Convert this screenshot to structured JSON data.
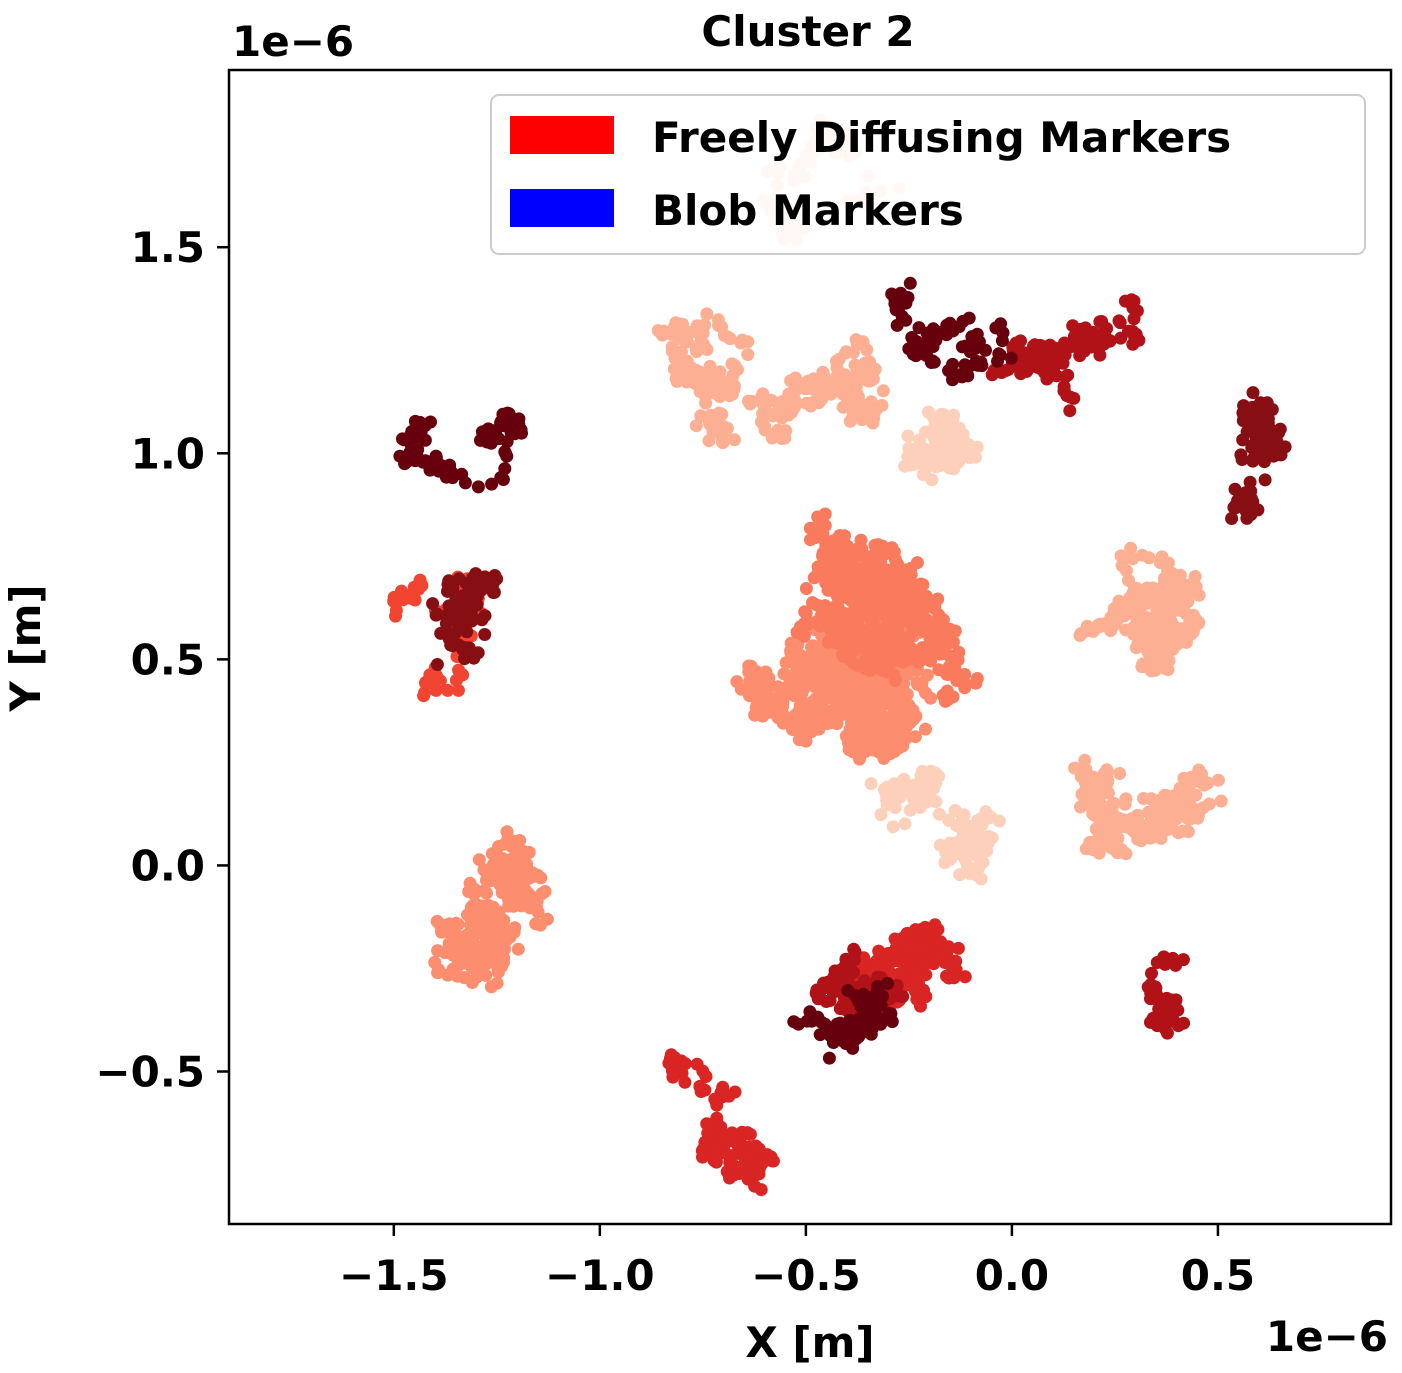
{
  "chart_data": {
    "type": "scatter",
    "title": "Cluster 2",
    "xlabel": "X [m]",
    "ylabel": "Y [m]",
    "x_offset_label": "1e−6",
    "y_offset_label": "1e−6",
    "xlim": [
      -1.9,
      0.92
    ],
    "ylim": [
      -0.87,
      1.93
    ],
    "x_ticks": [
      -1.5,
      -1.0,
      -0.5,
      0.0,
      0.5
    ],
    "x_tick_labels": [
      "−1.5",
      "−1.0",
      "−0.5",
      "0.0",
      "0.5"
    ],
    "y_ticks": [
      -0.5,
      0.0,
      0.5,
      1.0,
      1.5
    ],
    "y_tick_labels": [
      "−0.5",
      "0.0",
      "0.5",
      "1.0",
      "1.5"
    ],
    "grid": false,
    "legend": {
      "position": "top-right",
      "entries": [
        {
          "label": "Freely Diffusing Markers",
          "color": "#ff0000"
        },
        {
          "label": "Blob Markers",
          "color": "#0000ff"
        }
      ]
    },
    "colors": [
      "#fc8d6e",
      "#f97a5c",
      "#fcaf93",
      "#fdd0bb",
      "#f14431",
      "#d92523",
      "#b11218",
      "#870f14",
      "#67000d"
    ],
    "series": [
      {
        "color": "#fc8d6e",
        "cx": -0.45,
        "cy": 0.45,
        "sx": 0.32,
        "sy": 0.4,
        "n": 900
      },
      {
        "color": "#f97a5c",
        "cx": -0.25,
        "cy": 0.55,
        "sx": 0.28,
        "sy": 0.32,
        "n": 700
      },
      {
        "color": "#fc8d6e",
        "cx": -1.35,
        "cy": -0.15,
        "sx": 0.2,
        "sy": 0.18,
        "n": 260
      },
      {
        "color": "#fcaf93",
        "cx": -0.55,
        "cy": 1.05,
        "sx": 0.3,
        "sy": 0.22,
        "n": 300
      },
      {
        "color": "#fcaf93",
        "cx": 0.45,
        "cy": 0.55,
        "sx": 0.18,
        "sy": 0.25,
        "n": 220
      },
      {
        "color": "#fcaf93",
        "cx": 0.35,
        "cy": 0.15,
        "sx": 0.22,
        "sy": 0.12,
        "n": 200
      },
      {
        "color": "#fdd0bb",
        "cx": -0.15,
        "cy": 0.15,
        "sx": 0.16,
        "sy": 0.14,
        "n": 150
      },
      {
        "color": "#fdd0bb",
        "cx": -0.35,
        "cy": 1.65,
        "sx": 0.15,
        "sy": 0.1,
        "n": 90
      },
      {
        "color": "#fdd0bb",
        "cx": -0.2,
        "cy": 0.95,
        "sx": 0.18,
        "sy": 0.14,
        "n": 120
      },
      {
        "color": "#f14431",
        "cx": -1.45,
        "cy": 0.5,
        "sx": 0.1,
        "sy": 0.1,
        "n": 90
      },
      {
        "color": "#d92523",
        "cx": -0.7,
        "cy": -0.62,
        "sx": 0.15,
        "sy": 0.09,
        "n": 140
      },
      {
        "color": "#d92523",
        "cx": -0.15,
        "cy": -0.3,
        "sx": 0.22,
        "sy": 0.14,
        "n": 200
      },
      {
        "color": "#b11218",
        "cx": -0.4,
        "cy": -0.35,
        "sx": 0.1,
        "sy": 0.1,
        "n": 120
      },
      {
        "color": "#b11218",
        "cx": 0.15,
        "cy": 1.3,
        "sx": 0.18,
        "sy": 0.12,
        "n": 150
      },
      {
        "color": "#b11218",
        "cx": 0.45,
        "cy": -0.28,
        "sx": 0.05,
        "sy": 0.07,
        "n": 50
      },
      {
        "color": "#870f14",
        "cx": -1.3,
        "cy": 0.6,
        "sx": 0.08,
        "sy": 0.1,
        "n": 90
      },
      {
        "color": "#870f14",
        "cx": 0.55,
        "cy": 0.98,
        "sx": 0.1,
        "sy": 0.08,
        "n": 90
      },
      {
        "color": "#67000d",
        "cx": -1.35,
        "cy": 1.0,
        "sx": 0.07,
        "sy": 0.12,
        "n": 100
      },
      {
        "color": "#67000d",
        "cx": -0.45,
        "cy": -0.45,
        "sx": 0.08,
        "sy": 0.08,
        "n": 80
      },
      {
        "color": "#67000d",
        "cx": -0.1,
        "cy": 1.35,
        "sx": 0.12,
        "sy": 0.08,
        "n": 80
      }
    ]
  }
}
